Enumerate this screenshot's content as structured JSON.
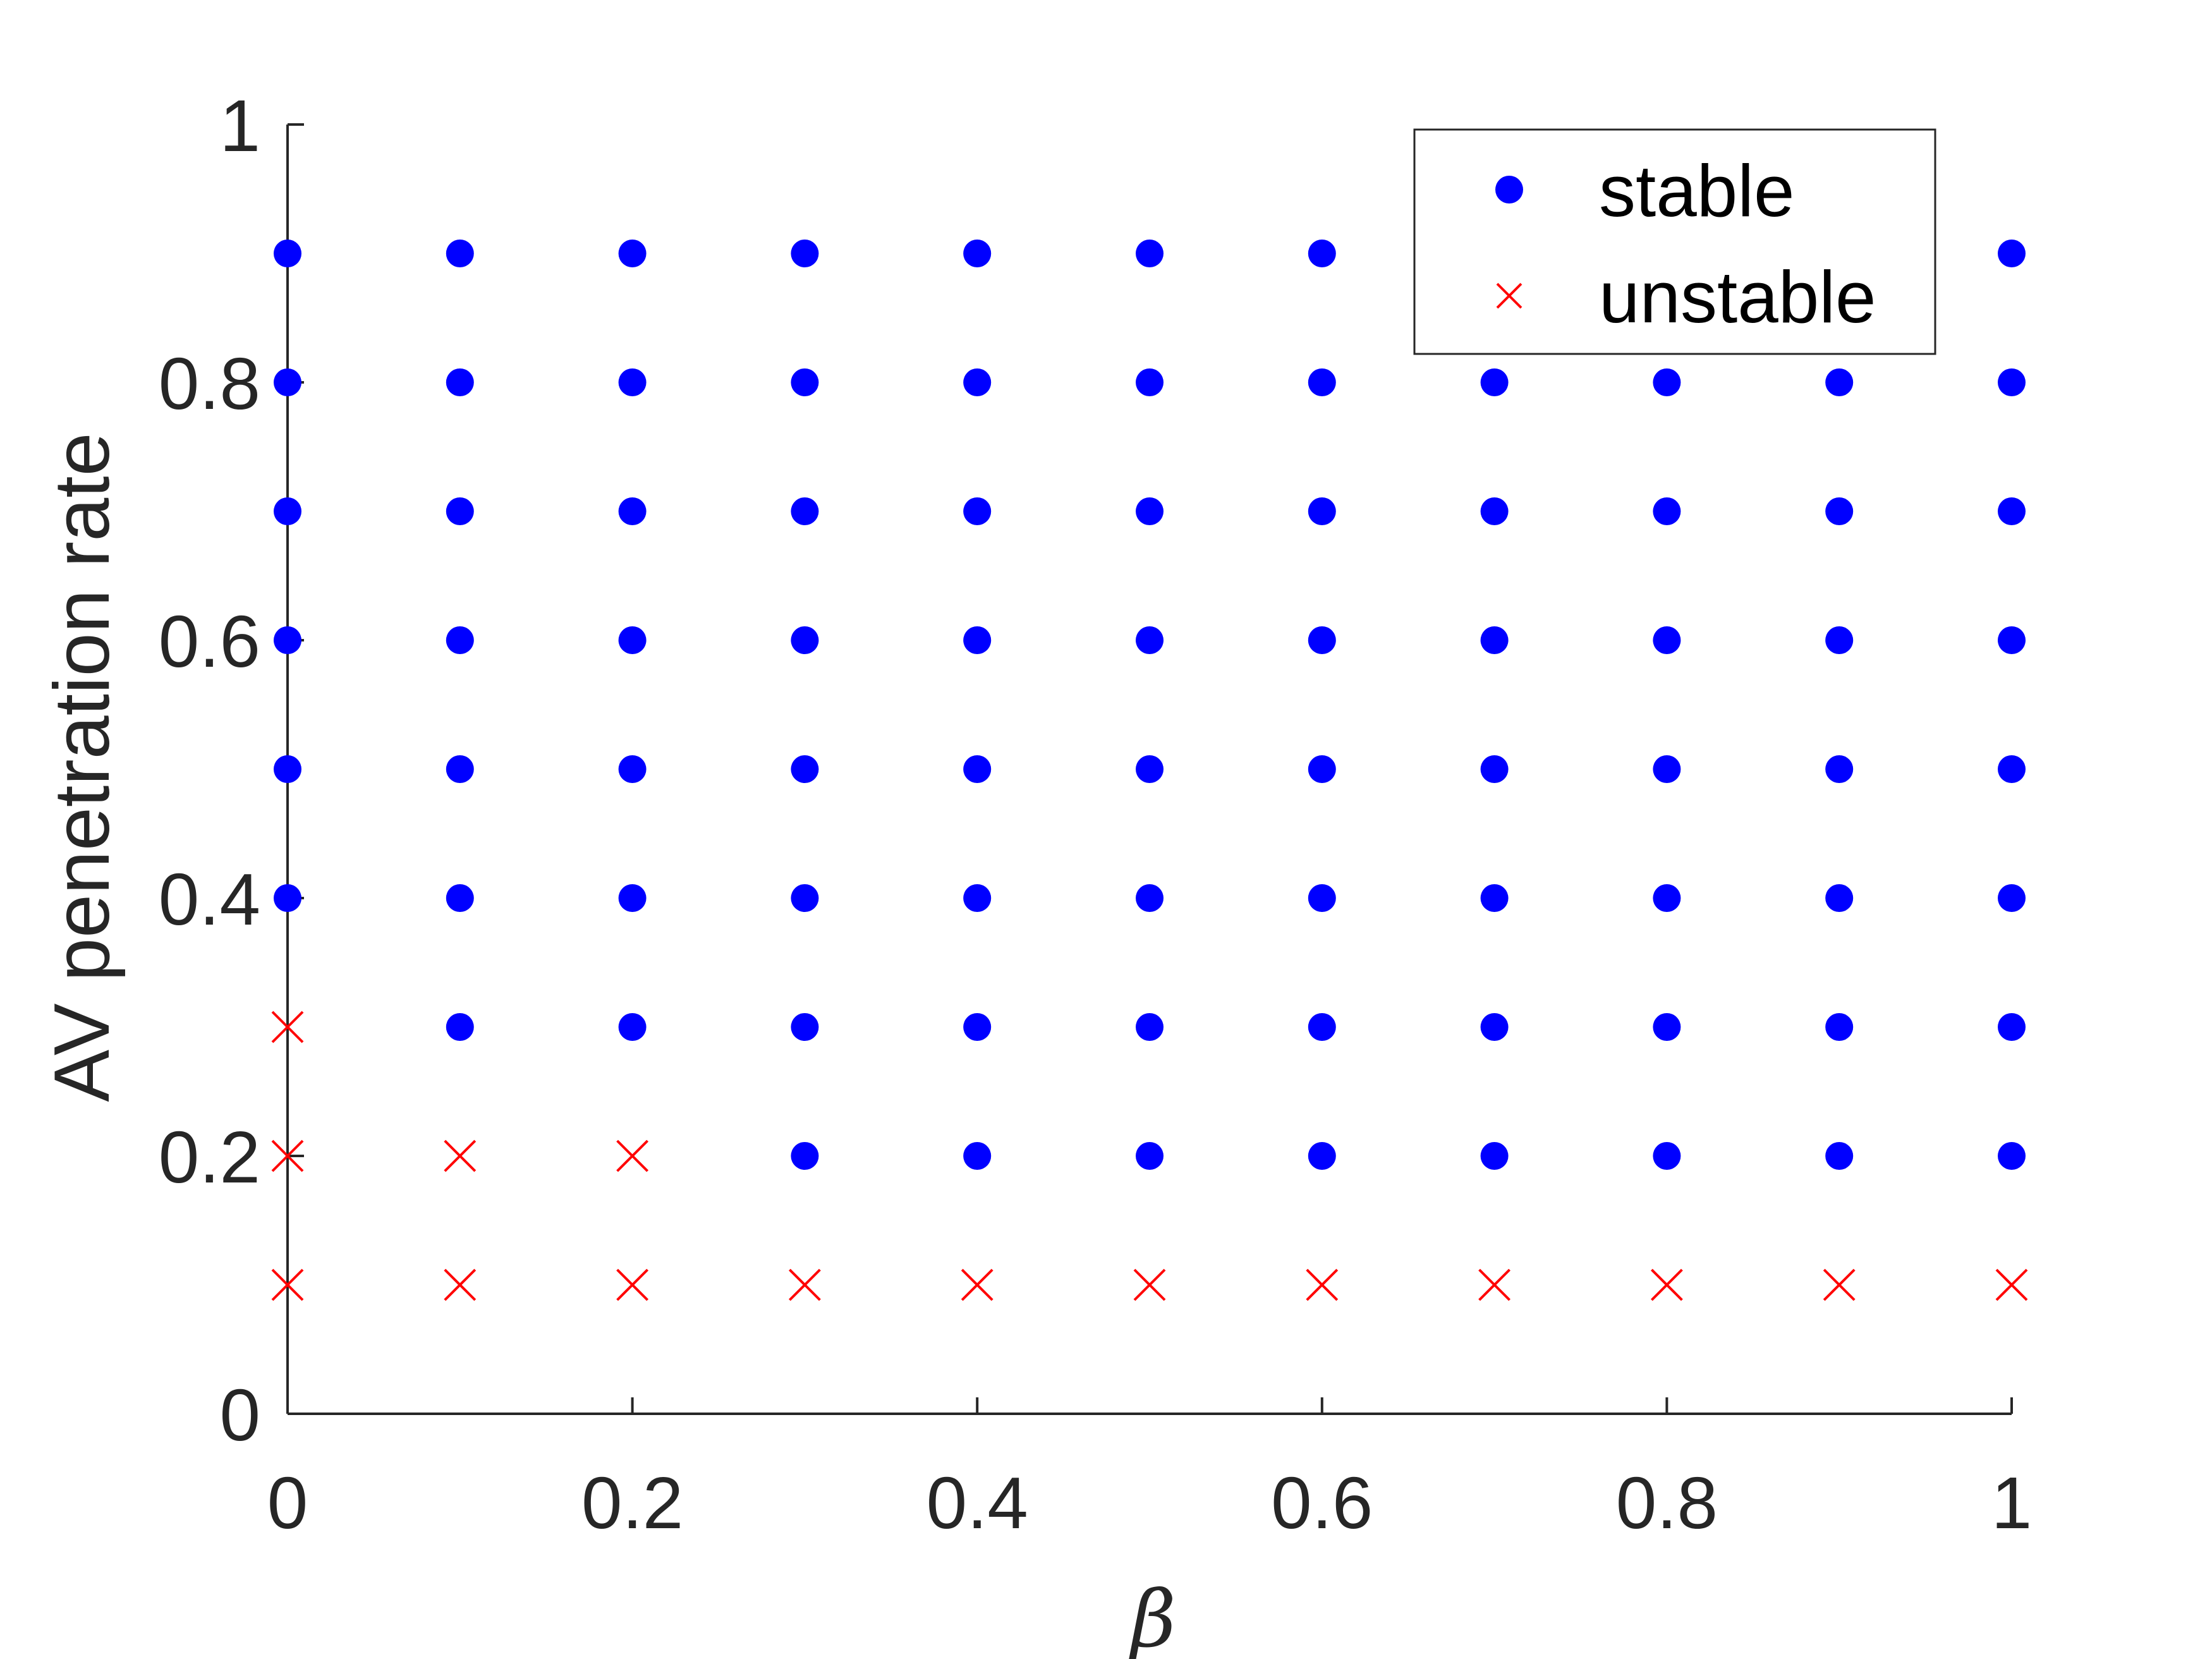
{
  "chart_data": {
    "type": "scatter",
    "xlabel": "β",
    "ylabel": "AV penetration rate",
    "xlim": [
      0,
      1
    ],
    "ylim": [
      0,
      1
    ],
    "x_ticks": [
      "0",
      "0.2",
      "0.4",
      "0.6",
      "0.8",
      "1"
    ],
    "y_ticks": [
      "0",
      "0.2",
      "0.4",
      "0.6",
      "0.8",
      "1"
    ],
    "grid": false,
    "legend_position": "top-right",
    "colors": {
      "stable": "#0000ff",
      "unstable": "#ff0000"
    },
    "series": [
      {
        "name": "stable",
        "marker": "filled-circle",
        "points": [
          [
            0,
            0.4
          ],
          [
            0,
            0.5
          ],
          [
            0,
            0.6
          ],
          [
            0,
            0.7
          ],
          [
            0,
            0.8
          ],
          [
            0,
            0.9
          ],
          [
            0.1,
            0.3
          ],
          [
            0.1,
            0.4
          ],
          [
            0.1,
            0.5
          ],
          [
            0.1,
            0.6
          ],
          [
            0.1,
            0.7
          ],
          [
            0.1,
            0.8
          ],
          [
            0.1,
            0.9
          ],
          [
            0.2,
            0.3
          ],
          [
            0.2,
            0.4
          ],
          [
            0.2,
            0.5
          ],
          [
            0.2,
            0.6
          ],
          [
            0.2,
            0.7
          ],
          [
            0.2,
            0.8
          ],
          [
            0.2,
            0.9
          ],
          [
            0.3,
            0.2
          ],
          [
            0.3,
            0.3
          ],
          [
            0.3,
            0.4
          ],
          [
            0.3,
            0.5
          ],
          [
            0.3,
            0.6
          ],
          [
            0.3,
            0.7
          ],
          [
            0.3,
            0.8
          ],
          [
            0.3,
            0.9
          ],
          [
            0.4,
            0.2
          ],
          [
            0.4,
            0.3
          ],
          [
            0.4,
            0.4
          ],
          [
            0.4,
            0.5
          ],
          [
            0.4,
            0.6
          ],
          [
            0.4,
            0.7
          ],
          [
            0.4,
            0.8
          ],
          [
            0.4,
            0.9
          ],
          [
            0.5,
            0.2
          ],
          [
            0.5,
            0.3
          ],
          [
            0.5,
            0.4
          ],
          [
            0.5,
            0.5
          ],
          [
            0.5,
            0.6
          ],
          [
            0.5,
            0.7
          ],
          [
            0.5,
            0.8
          ],
          [
            0.5,
            0.9
          ],
          [
            0.6,
            0.2
          ],
          [
            0.6,
            0.3
          ],
          [
            0.6,
            0.4
          ],
          [
            0.6,
            0.5
          ],
          [
            0.6,
            0.6
          ],
          [
            0.6,
            0.7
          ],
          [
            0.6,
            0.8
          ],
          [
            0.6,
            0.9
          ],
          [
            0.7,
            0.2
          ],
          [
            0.7,
            0.3
          ],
          [
            0.7,
            0.4
          ],
          [
            0.7,
            0.5
          ],
          [
            0.7,
            0.6
          ],
          [
            0.7,
            0.7
          ],
          [
            0.7,
            0.8
          ],
          [
            0.8,
            0.2
          ],
          [
            0.8,
            0.3
          ],
          [
            0.8,
            0.4
          ],
          [
            0.8,
            0.5
          ],
          [
            0.8,
            0.6
          ],
          [
            0.8,
            0.7
          ],
          [
            0.8,
            0.8
          ],
          [
            0.9,
            0.2
          ],
          [
            0.9,
            0.3
          ],
          [
            0.9,
            0.4
          ],
          [
            0.9,
            0.5
          ],
          [
            0.9,
            0.6
          ],
          [
            0.9,
            0.7
          ],
          [
            0.9,
            0.8
          ],
          [
            1,
            0.2
          ],
          [
            1,
            0.3
          ],
          [
            1,
            0.4
          ],
          [
            1,
            0.5
          ],
          [
            1,
            0.6
          ],
          [
            1,
            0.7
          ],
          [
            1,
            0.8
          ],
          [
            1,
            0.9
          ]
        ]
      },
      {
        "name": "unstable",
        "marker": "x",
        "points": [
          [
            0,
            0.1
          ],
          [
            0,
            0.2
          ],
          [
            0,
            0.3
          ],
          [
            0.1,
            0.1
          ],
          [
            0.1,
            0.2
          ],
          [
            0.2,
            0.1
          ],
          [
            0.2,
            0.2
          ],
          [
            0.3,
            0.1
          ],
          [
            0.4,
            0.1
          ],
          [
            0.5,
            0.1
          ],
          [
            0.6,
            0.1
          ],
          [
            0.7,
            0.1
          ],
          [
            0.8,
            0.1
          ],
          [
            0.9,
            0.1
          ],
          [
            1,
            0.1
          ]
        ]
      }
    ]
  }
}
